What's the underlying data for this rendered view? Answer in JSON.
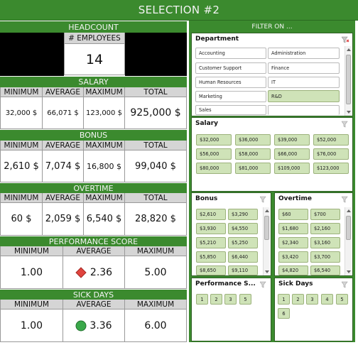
{
  "title": "SELECTION #2",
  "headcount": {
    "label": "HEADCOUNT",
    "employees_label": "# EMPLOYEES",
    "employees_value": "14"
  },
  "salary": {
    "label": "SALARY",
    "cols": [
      "MINIMUM",
      "AVERAGE",
      "MAXIMUM",
      "TOTAL"
    ],
    "values": [
      "32,000 $",
      "66,071 $",
      "123,000 $",
      "925,000 $"
    ]
  },
  "bonus": {
    "label": "BONUS",
    "cols": [
      "MINIMUM",
      "AVERAGE",
      "MAXIMUM",
      "TOTAL"
    ],
    "values": [
      "2,610 $",
      "7,074 $",
      "16,800 $",
      "99,040 $"
    ]
  },
  "overtime": {
    "label": "OVERTIME",
    "cols": [
      "MINIMUM",
      "AVERAGE",
      "MAXIMUM",
      "TOTAL"
    ],
    "values": [
      "60 $",
      "2,059 $",
      "6,540 $",
      "28,820 $"
    ]
  },
  "performance": {
    "label": "PERFORMANCE SCORE",
    "cols": [
      "MINIMUM",
      "AVERAGE",
      "MAXIMUM"
    ],
    "values": [
      "1.00",
      "2.36",
      "5.00"
    ],
    "indicator": "red-diamond-icon",
    "indicator_color": "#e0443e"
  },
  "sickdays": {
    "label": "SICK DAYS",
    "cols": [
      "MINIMUM",
      "AVERAGE",
      "MAXIMUM"
    ],
    "values": [
      "1.00",
      "3.36",
      "6.00"
    ],
    "indicator": "green-circle-icon",
    "indicator_color": "#3aa84a"
  },
  "filter": {
    "header": "FILTER ON ...",
    "department": {
      "title": "Department",
      "items": [
        "Accounting",
        "Administration",
        "Customer Support",
        "Finance",
        "Human Resources",
        "IT",
        "Marketing",
        "R&D",
        "Sales"
      ],
      "selected": [
        "R&D"
      ]
    },
    "salary": {
      "title": "Salary",
      "items": [
        "$32,000",
        "$36,000",
        "$39,000",
        "$52,000",
        "$56,000",
        "$58,000",
        "$66,000",
        "$76,000",
        "$80,000",
        "$81,000",
        "$109,000",
        "$123,000"
      ]
    },
    "bonus": {
      "title": "Bonus",
      "items": [
        "$2,610",
        "$3,290",
        "$3,930",
        "$4,550",
        "$5,210",
        "$5,250",
        "$5,850",
        "$6,440",
        "$8,650",
        "$9,110"
      ]
    },
    "overtime": {
      "title": "Overtime",
      "items": [
        "$60",
        "$700",
        "$1,680",
        "$2,160",
        "$2,340",
        "$3,160",
        "$3,420",
        "$3,700",
        "$4,820",
        "$6,540"
      ]
    },
    "performance": {
      "title": "Performance S...",
      "items": [
        "1",
        "2",
        "3",
        "5"
      ]
    },
    "sickdays": {
      "title": "Sick Days",
      "items": [
        "1",
        "2",
        "3",
        "4",
        "5",
        "6"
      ]
    }
  },
  "colors": {
    "accent": "#3b8a2e",
    "selected": "#cfe3b8"
  }
}
